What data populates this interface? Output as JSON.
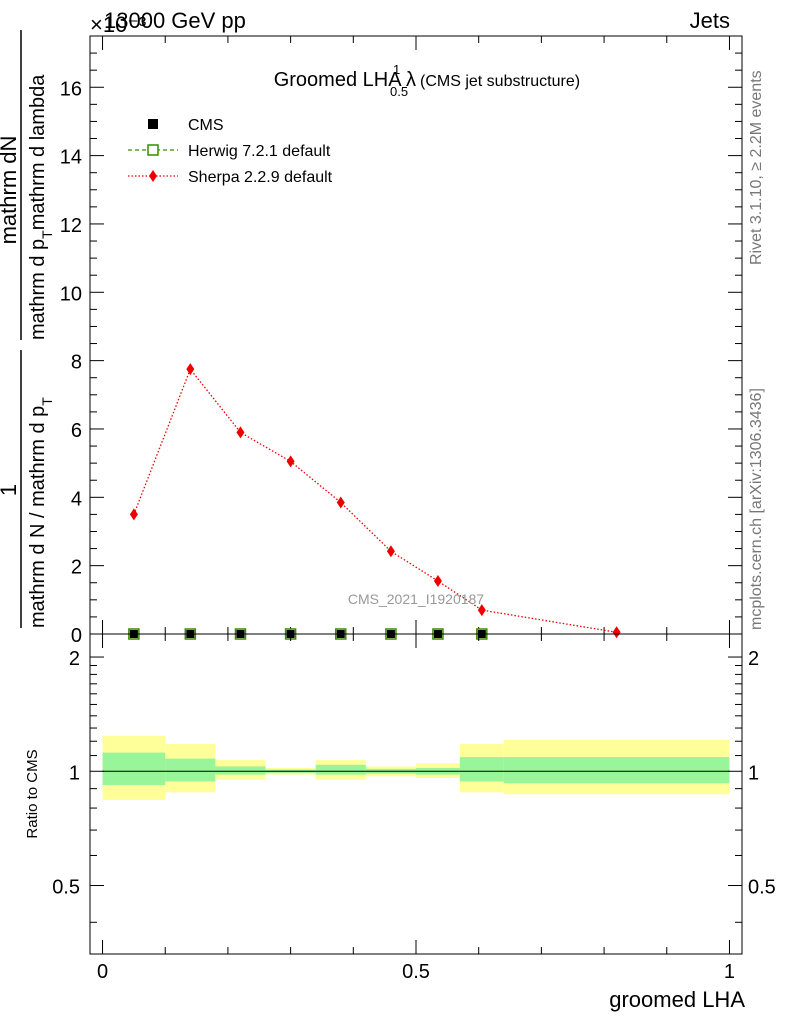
{
  "header": {
    "left": "13000 GeV pp",
    "right": "Jets",
    "exponent": "×10⁻³"
  },
  "side_labels": {
    "rivet": "Rivet 3.1.10, ≥ 2.2M events",
    "mcplots": "mcplots.cern.ch [arXiv:1306.3436]"
  },
  "watermark": "CMS_2021_I1920187",
  "colors": {
    "cms": "#000000",
    "herwig": "#3a8a00",
    "sherpa": "#ee0000",
    "band_inner": "#99f599",
    "band_outer": "#ffff99"
  },
  "chart_data": [
    {
      "type": "line",
      "title": "Groomed LHA λ",
      "title_sup": "1",
      "title_sub": "0.5",
      "title_suffix": "(CMS jet substructure)",
      "ylabel": {
        "num": "mathrm dN",
        "den": "mathrm d p",
        "den_sub": "T",
        "den_suffix": "mathrm d lambda",
        "prefix_num": "1",
        "prefix_den": "mathrm d N / mathrm d p",
        "prefix_den_sub": "T"
      },
      "xlim": [
        -0.02,
        1.02
      ],
      "ylim": [
        0,
        17.5
      ],
      "y_unit_exponent": -3,
      "yticks": [
        0,
        2,
        4,
        6,
        8,
        10,
        12,
        14,
        16
      ],
      "ytick_labels": [
        "0",
        "2",
        "4",
        "6",
        "8",
        "10",
        "12",
        "14",
        "16"
      ],
      "legend": [
        {
          "name": "CMS",
          "marker": "square-filled"
        },
        {
          "name": "Herwig 7.2.1 default",
          "marker": "square-open",
          "line": "dashed"
        },
        {
          "name": "Sherpa 2.2.9 default",
          "marker": "diamond",
          "line": "dotted"
        }
      ],
      "series": [
        {
          "name": "CMS",
          "x": [
            0.05,
            0.14,
            0.22,
            0.3,
            0.38,
            0.46,
            0.535,
            0.605
          ],
          "values": [
            0.0,
            0.0,
            0.0,
            0.0,
            0.0,
            0.0,
            0.0,
            0.0
          ]
        },
        {
          "name": "Herwig 7.2.1 default",
          "x": [
            0.05,
            0.14,
            0.22,
            0.3,
            0.38,
            0.46,
            0.535,
            0.605
          ],
          "values": [
            0.0,
            0.0,
            0.0,
            0.0,
            0.0,
            0.0,
            0.0,
            0.0
          ]
        },
        {
          "name": "Sherpa 2.2.9 default",
          "x": [
            0.05,
            0.14,
            0.22,
            0.3,
            0.38,
            0.46,
            0.535,
            0.605,
            0.82
          ],
          "values": [
            3.5,
            7.75,
            5.9,
            5.05,
            3.85,
            2.42,
            1.55,
            0.7,
            0.05
          ]
        }
      ]
    },
    {
      "type": "area",
      "ylabel": "Ratio to CMS",
      "xlabel": "groomed LHA",
      "xlim": [
        -0.02,
        1.02
      ],
      "ylim": [
        0.33,
        2.3
      ],
      "yticks": [
        0.5,
        1,
        2
      ],
      "ytick_labels": [
        "0.5",
        "1",
        "2"
      ],
      "xticks": [
        0,
        0.5,
        1
      ],
      "xtick_labels": [
        "0",
        "0.5",
        "1"
      ],
      "bins": [
        {
          "x": [
            0.0,
            0.1
          ],
          "inner": [
            0.92,
            1.12
          ],
          "outer": [
            0.84,
            1.24
          ]
        },
        {
          "x": [
            0.1,
            0.18
          ],
          "inner": [
            0.94,
            1.08
          ],
          "outer": [
            0.88,
            1.18
          ]
        },
        {
          "x": [
            0.18,
            0.26
          ],
          "inner": [
            0.98,
            1.03
          ],
          "outer": [
            0.95,
            1.07
          ]
        },
        {
          "x": [
            0.26,
            0.34
          ],
          "inner": [
            0.99,
            1.01
          ],
          "outer": [
            0.98,
            1.02
          ]
        },
        {
          "x": [
            0.34,
            0.42
          ],
          "inner": [
            0.98,
            1.04
          ],
          "outer": [
            0.95,
            1.07
          ]
        },
        {
          "x": [
            0.42,
            0.5
          ],
          "inner": [
            0.985,
            1.015
          ],
          "outer": [
            0.97,
            1.03
          ]
        },
        {
          "x": [
            0.5,
            0.57
          ],
          "inner": [
            0.98,
            1.02
          ],
          "outer": [
            0.96,
            1.05
          ]
        },
        {
          "x": [
            0.57,
            0.64
          ],
          "inner": [
            0.94,
            1.09
          ],
          "outer": [
            0.88,
            1.18
          ]
        },
        {
          "x": [
            0.64,
            1.0
          ],
          "inner": [
            0.93,
            1.09
          ],
          "outer": [
            0.87,
            1.21
          ]
        }
      ]
    }
  ]
}
